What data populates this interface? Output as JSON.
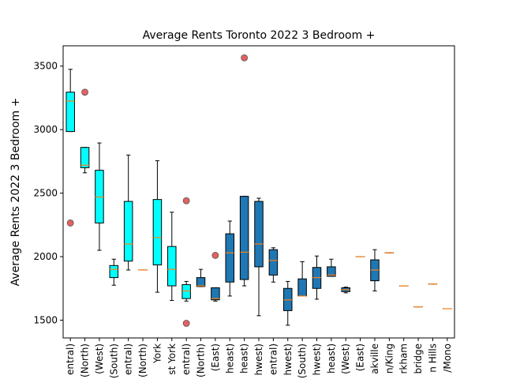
{
  "chart_data": {
    "type": "box",
    "title": "Average Rents Toronto 2022 3 Bedroom +",
    "xlabel": "",
    "ylabel": "Average Rents 2022 3 Bedroom +",
    "ylim": [
      1360,
      3660
    ],
    "yticks": [
      1500,
      2000,
      2500,
      3000,
      3500
    ],
    "grid": false,
    "colors": {
      "highlight": "#00ffff",
      "default": "#1f77b4",
      "median": "#ff7f0e",
      "flier": "#e05050"
    },
    "categories": [
      "Toronto (Central)",
      "Toronto (North)",
      "Toronto (West)",
      "Toronto (South)",
      "Etobicoke (Central)",
      "Etobicoke (North)",
      "York",
      "East York",
      "Scarborough (Central)",
      "Scarborough (North)",
      "Scarborough (East)",
      "North York (Southeast)",
      "North York (Northeast)",
      "North York (Southwest)",
      "North York (Central)",
      "North York (Northwest)",
      "Mississauga (South)",
      "Mississauga (Northwest)",
      "Mississauga (Northeast)",
      "Brampton (West)",
      "Brampton (East)",
      "Oakville",
      "Richmond Hill/Vaughan/King",
      "Markham",
      "Pickering/Uxbridge",
      "Halton Hills",
      "Orangeville/Mono"
    ],
    "tick_labels": [
      "entral)",
      "(North)",
      "(West)",
      "(South)",
      "entral)",
      "(North)",
      "York",
      "st York",
      "entral)",
      "(North)",
      "(East)",
      "heast)",
      "heast)",
      "hwest)",
      "entral)",
      "hwest)",
      "(South)",
      "hwest)",
      "heast)",
      "(West)",
      "(East)",
      "akville",
      "n/King",
      "rkham",
      "bridge",
      "n Hills",
      "/Mono"
    ],
    "series": [
      {
        "q1": 2985,
        "median": 3225,
        "q3": 3295,
        "whislo": 2985,
        "whishi": 3475,
        "fliers": [
          2265
        ],
        "highlight": true
      },
      {
        "q1": 2700,
        "median": 2720,
        "q3": 2860,
        "whislo": 2660,
        "whishi": 2860,
        "fliers": [
          3295
        ],
        "highlight": true
      },
      {
        "q1": 2265,
        "median": 2470,
        "q3": 2680,
        "whislo": 2050,
        "whishi": 2895,
        "fliers": [],
        "highlight": true
      },
      {
        "q1": 1835,
        "median": 1900,
        "q3": 1930,
        "whislo": 1775,
        "whishi": 1980,
        "fliers": [],
        "highlight": true
      },
      {
        "q1": 1965,
        "median": 2100,
        "q3": 2435,
        "whislo": 1895,
        "whishi": 2800,
        "fliers": [],
        "highlight": true
      },
      {
        "q1": 1895,
        "median": 1895,
        "q3": 1895,
        "whislo": 1895,
        "whishi": 1895,
        "fliers": [],
        "highlight": true
      },
      {
        "q1": 1935,
        "median": 2150,
        "q3": 2450,
        "whislo": 1720,
        "whishi": 2755,
        "fliers": [],
        "highlight": true
      },
      {
        "q1": 1770,
        "median": 1900,
        "q3": 2080,
        "whislo": 1655,
        "whishi": 2350,
        "fliers": [],
        "highlight": true
      },
      {
        "q1": 1670,
        "median": 1730,
        "q3": 1780,
        "whislo": 1650,
        "whishi": 1805,
        "fliers": [
          2440,
          1475
        ],
        "highlight": true
      },
      {
        "q1": 1765,
        "median": 1770,
        "q3": 1835,
        "whislo": 1765,
        "whishi": 1900,
        "fliers": [],
        "highlight": false
      },
      {
        "q1": 1660,
        "median": 1670,
        "q3": 1755,
        "whislo": 1650,
        "whishi": 1755,
        "fliers": [
          2010
        ],
        "highlight": false
      },
      {
        "q1": 1800,
        "median": 2030,
        "q3": 2180,
        "whislo": 1690,
        "whishi": 2280,
        "fliers": [],
        "highlight": false
      },
      {
        "q1": 1820,
        "median": 2035,
        "q3": 2475,
        "whislo": 1770,
        "whishi": 2475,
        "fliers": [
          3565
        ],
        "highlight": false
      },
      {
        "q1": 1920,
        "median": 2100,
        "q3": 2435,
        "whislo": 1535,
        "whishi": 2460,
        "fliers": [],
        "highlight": false
      },
      {
        "q1": 1855,
        "median": 1970,
        "q3": 2055,
        "whislo": 1800,
        "whishi": 2070,
        "fliers": [],
        "highlight": false
      },
      {
        "q1": 1575,
        "median": 1660,
        "q3": 1750,
        "whislo": 1460,
        "whishi": 1805,
        "fliers": [],
        "highlight": false
      },
      {
        "q1": 1690,
        "median": 1690,
        "q3": 1825,
        "whislo": 1690,
        "whishi": 1960,
        "fliers": [],
        "highlight": false
      },
      {
        "q1": 1750,
        "median": 1835,
        "q3": 1915,
        "whislo": 1665,
        "whishi": 2005,
        "fliers": [],
        "highlight": false
      },
      {
        "q1": 1845,
        "median": 1855,
        "q3": 1920,
        "whislo": 1845,
        "whishi": 1980,
        "fliers": [],
        "highlight": false
      },
      {
        "q1": 1725,
        "median": 1740,
        "q3": 1755,
        "whislo": 1715,
        "whishi": 1760,
        "fliers": [],
        "highlight": false
      },
      {
        "q1": 2000,
        "median": 2000,
        "q3": 2000,
        "whislo": 2000,
        "whishi": 2000,
        "fliers": [],
        "highlight": false
      },
      {
        "q1": 1810,
        "median": 1895,
        "q3": 1975,
        "whislo": 1730,
        "whishi": 2055,
        "fliers": [],
        "highlight": false
      },
      {
        "q1": 2030,
        "median": 2030,
        "q3": 2030,
        "whislo": 2030,
        "whishi": 2030,
        "fliers": [],
        "highlight": false
      },
      {
        "q1": 1770,
        "median": 1770,
        "q3": 1770,
        "whislo": 1770,
        "whishi": 1770,
        "fliers": [],
        "highlight": false
      },
      {
        "q1": 1605,
        "median": 1605,
        "q3": 1605,
        "whislo": 1605,
        "whishi": 1605,
        "fliers": [],
        "highlight": false
      },
      {
        "q1": 1785,
        "median": 1785,
        "q3": 1785,
        "whislo": 1785,
        "whishi": 1785,
        "fliers": [],
        "highlight": false
      },
      {
        "q1": 1590,
        "median": 1590,
        "q3": 1590,
        "whislo": 1590,
        "whishi": 1590,
        "fliers": [],
        "highlight": false
      }
    ]
  }
}
